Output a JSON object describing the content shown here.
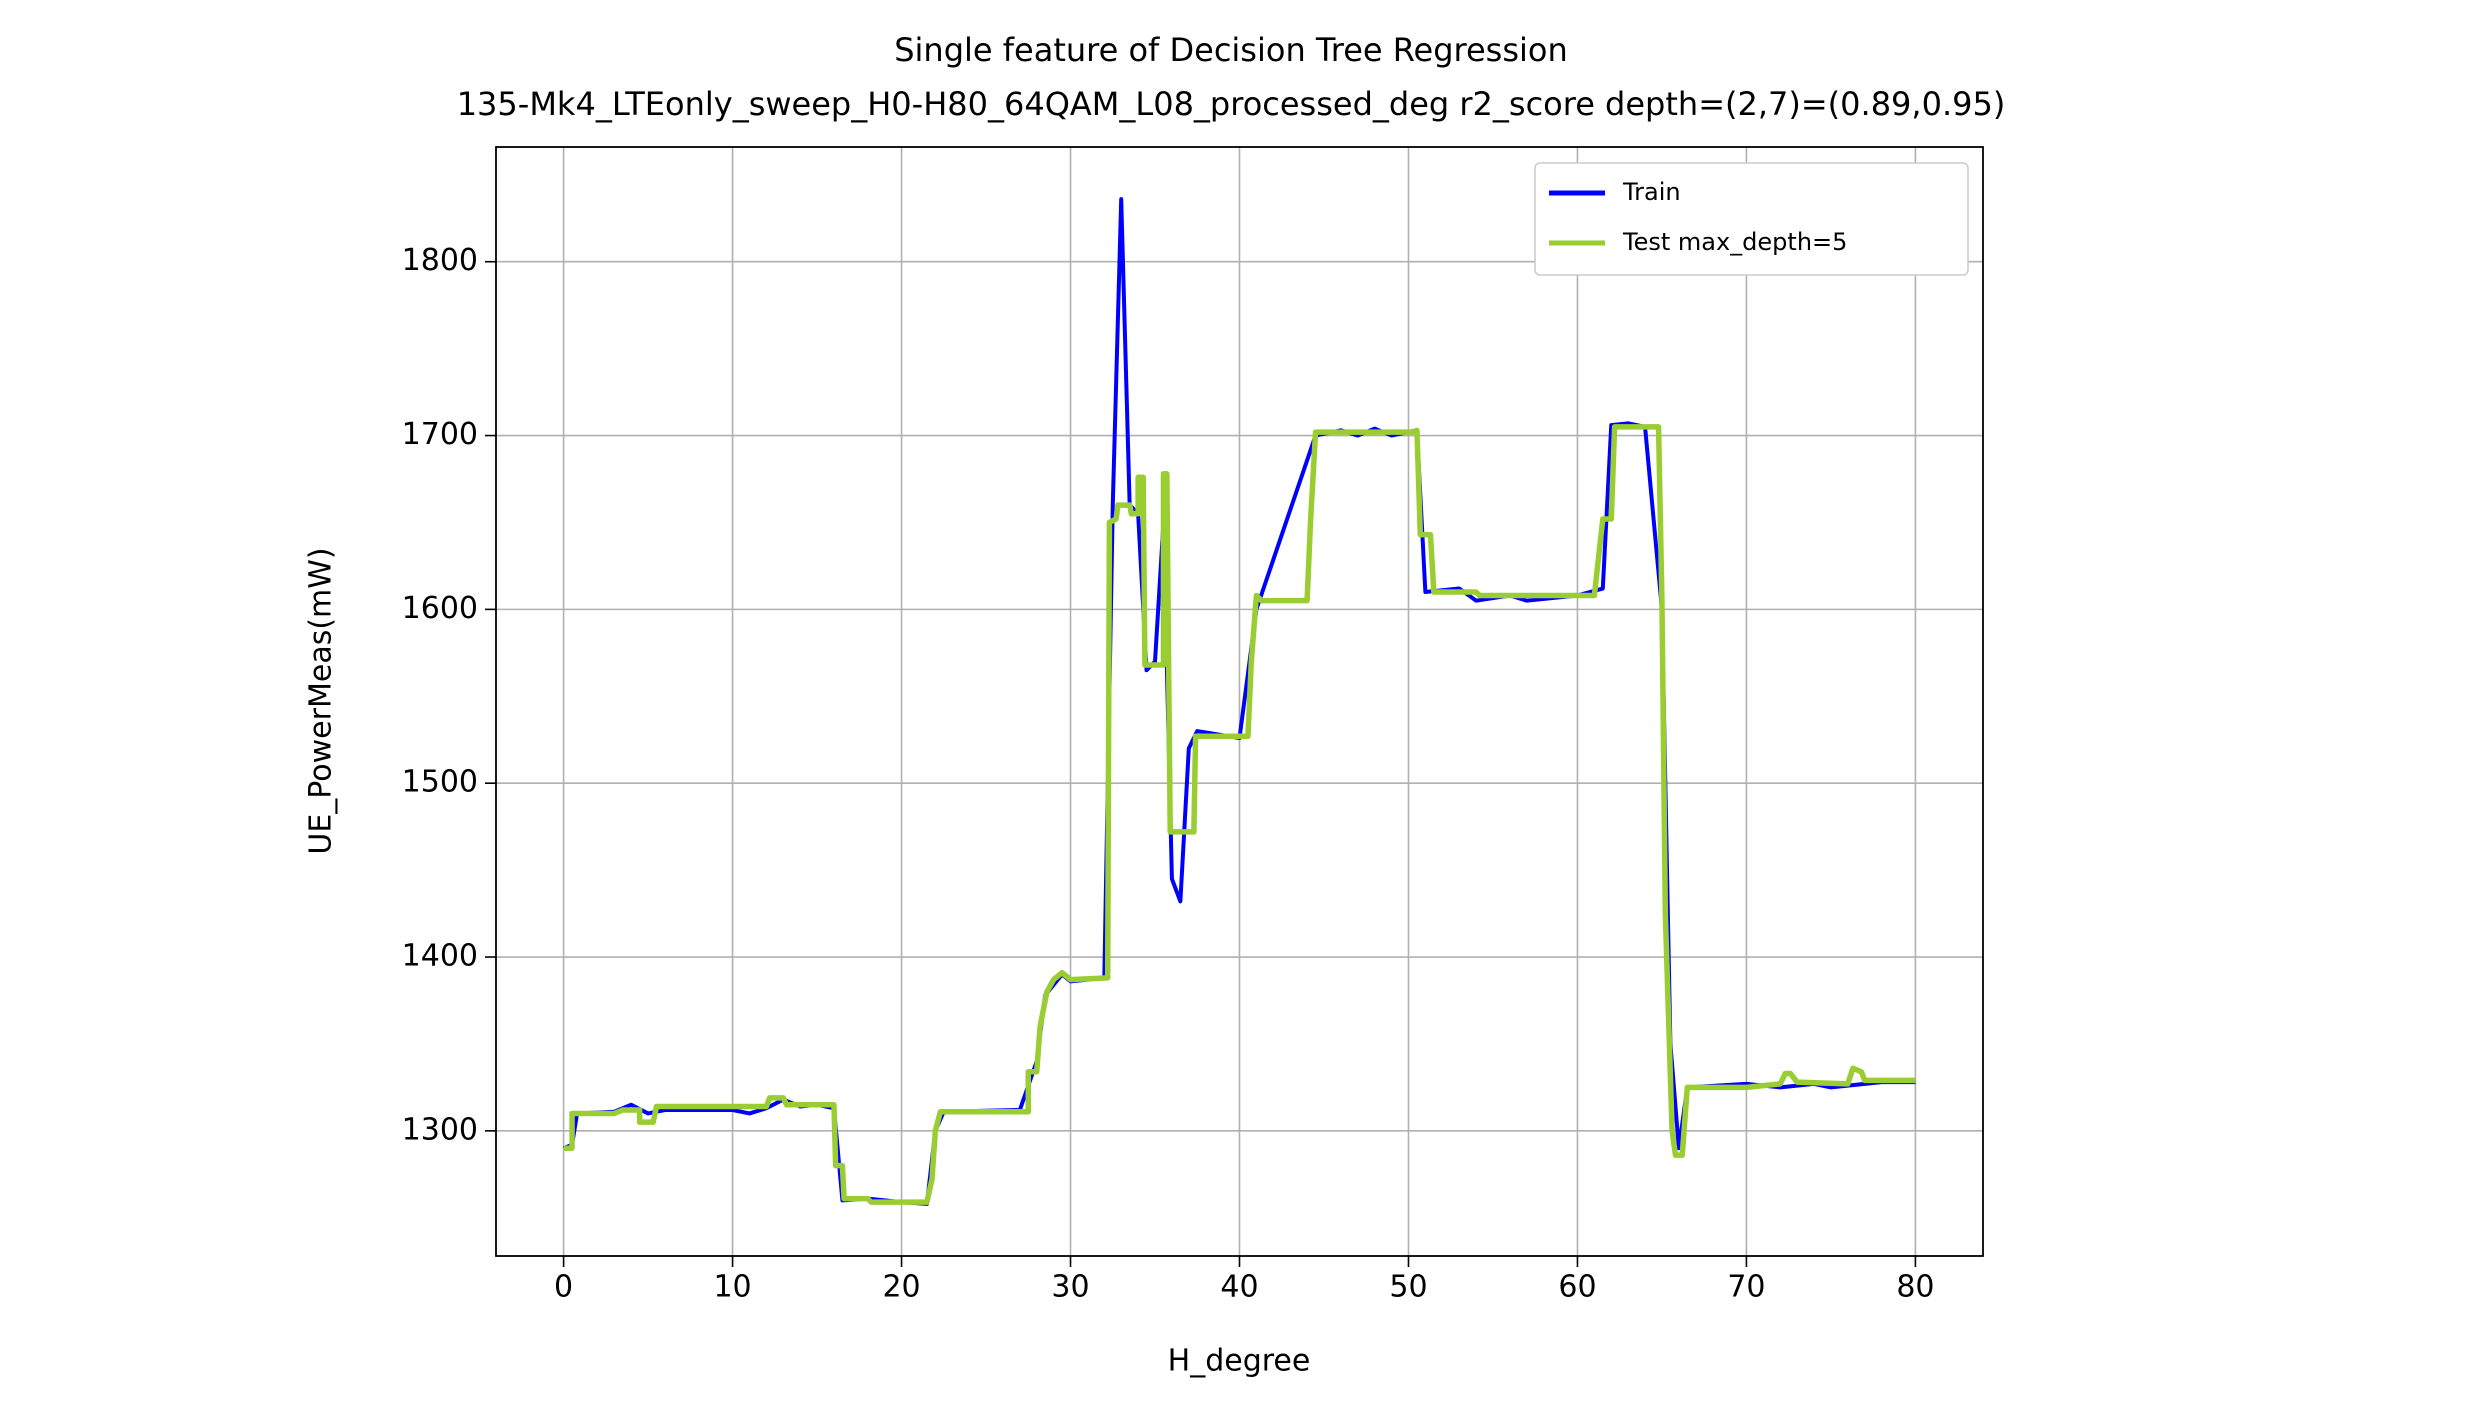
{
  "chart_data": {
    "type": "line",
    "title": "Single feature of Decision Tree Regression",
    "subtitle": "135-Mk4_LTEonly_sweep_H0-H80_64QAM_L08_processed_deg r2_score depth=(2,7)=(0.89,0.95)",
    "x_label": "H_degree",
    "y_label": "UE_PowerMeas(mW)",
    "xlim": [
      -4,
      84
    ],
    "ylim": [
      1228,
      1866
    ],
    "xticks": [
      0,
      10,
      20,
      30,
      40,
      50,
      60,
      70,
      80
    ],
    "yticks": [
      1300,
      1400,
      1500,
      1600,
      1700,
      1800
    ],
    "grid": true,
    "legend": "upper right",
    "series": [
      {
        "name": "Train",
        "color": "#0000ff",
        "x": [
          0,
          0.5,
          0.8,
          3,
          4,
          5,
          6,
          10,
          11,
          12,
          13,
          14,
          15,
          16,
          16.5,
          18,
          20,
          21.5,
          22,
          22.5,
          27,
          28,
          28.5,
          29.5,
          30,
          32,
          32.5,
          33,
          33.5,
          34,
          34.5,
          35,
          35.5,
          36,
          36.5,
          37,
          37.5,
          40,
          41,
          44.5,
          46,
          47,
          48,
          49,
          50.5,
          51,
          53,
          54,
          56,
          57,
          60,
          61.5,
          62,
          63,
          64,
          65,
          65.5,
          66,
          66.5,
          70,
          72,
          74,
          75,
          78,
          80
        ],
        "values": [
          1290,
          1292,
          1310,
          1311,
          1315,
          1310,
          1312,
          1312,
          1310,
          1313,
          1318,
          1314,
          1315,
          1313,
          1260,
          1261,
          1259,
          1258,
          1300,
          1311,
          1312,
          1340,
          1378,
          1390,
          1386,
          1388,
          1660,
          1836,
          1660,
          1655,
          1565,
          1570,
          1650,
          1445,
          1432,
          1520,
          1530,
          1526,
          1600,
          1700,
          1703,
          1700,
          1704,
          1700,
          1703,
          1610,
          1612,
          1605,
          1608,
          1605,
          1608,
          1612,
          1706,
          1707,
          1705,
          1600,
          1350,
          1290,
          1325,
          1327,
          1325,
          1327,
          1325,
          1328,
          1328
        ]
      },
      {
        "name": "Test max_depth=5",
        "color": "#9acd32",
        "x": [
          0,
          0.5,
          0.5,
          3,
          3.5,
          4.5,
          4.5,
          5.3,
          5.5,
          12,
          12.2,
          13,
          13.2,
          16,
          16.1,
          16.5,
          16.6,
          18,
          18.2,
          21.5,
          21.8,
          22,
          22.3,
          27.5,
          27.5,
          28,
          28.2,
          28.6,
          29,
          29.5,
          30,
          32.2,
          32.3,
          32.7,
          32.8,
          33.5,
          33.6,
          34,
          34,
          34.3,
          34.4,
          35.5,
          35.5,
          35.7,
          35.9,
          37.3,
          37.4,
          40.5,
          40.7,
          41,
          41.3,
          44,
          44.2,
          44.5,
          50.3,
          50.5,
          50.7,
          51.3,
          51.5,
          54,
          54.2,
          61,
          61.5,
          62,
          62.2,
          64.8,
          65,
          65.2,
          65.6,
          65.8,
          66.2,
          66.5,
          70,
          72,
          72.3,
          72.6,
          73,
          76,
          76.3,
          76.8,
          77,
          80
        ],
        "values": [
          1290,
          1290,
          1310,
          1310,
          1312,
          1312,
          1305,
          1305,
          1314,
          1314,
          1319,
          1319,
          1315,
          1315,
          1280,
          1280,
          1261,
          1261,
          1259,
          1259,
          1272,
          1300,
          1311,
          1311,
          1334,
          1334,
          1360,
          1380,
          1387,
          1391,
          1387,
          1388,
          1650,
          1652,
          1660,
          1660,
          1655,
          1655,
          1676,
          1676,
          1568,
          1568,
          1678,
          1678,
          1472,
          1472,
          1527,
          1527,
          1570,
          1608,
          1605,
          1605,
          1650,
          1702,
          1702,
          1703,
          1643,
          1643,
          1610,
          1610,
          1608,
          1608,
          1652,
          1652,
          1705,
          1705,
          1605,
          1425,
          1300,
          1286,
          1286,
          1325,
          1325,
          1327,
          1333,
          1333,
          1328,
          1327,
          1336,
          1334,
          1329,
          1329
        ]
      }
    ]
  }
}
